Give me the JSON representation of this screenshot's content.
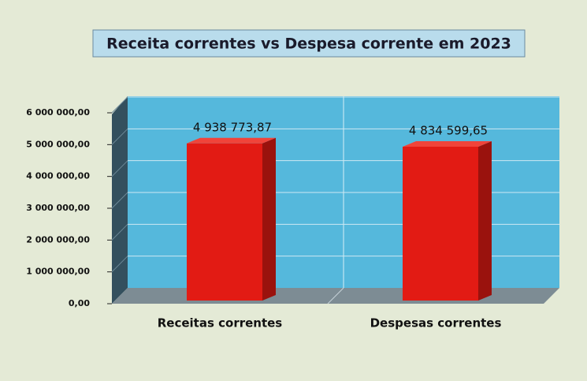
{
  "chart_data": {
    "type": "bar3d",
    "title": "Receita correntes  vs  Despesa corrente em 2023",
    "categories": [
      "Receitas correntes",
      "Despesas correntes"
    ],
    "values": [
      4938773.87,
      4834599.65
    ],
    "value_labels": [
      "4 938 773,87",
      "4 834 599,65"
    ],
    "color": "#e21b14",
    "ylim": [
      0,
      6000000
    ],
    "yticks": [
      {
        "value": 0,
        "label": "0,00"
      },
      {
        "value": 1000000,
        "label": "1 000 000,00"
      },
      {
        "value": 2000000,
        "label": "2 000 000,00"
      },
      {
        "value": 3000000,
        "label": "3 000 000,00"
      },
      {
        "value": 4000000,
        "label": "4 000 000,00"
      },
      {
        "value": 5000000,
        "label": "5 000 000,00"
      },
      {
        "value": 6000000,
        "label": "6 000 000,00"
      }
    ],
    "grid": true
  }
}
